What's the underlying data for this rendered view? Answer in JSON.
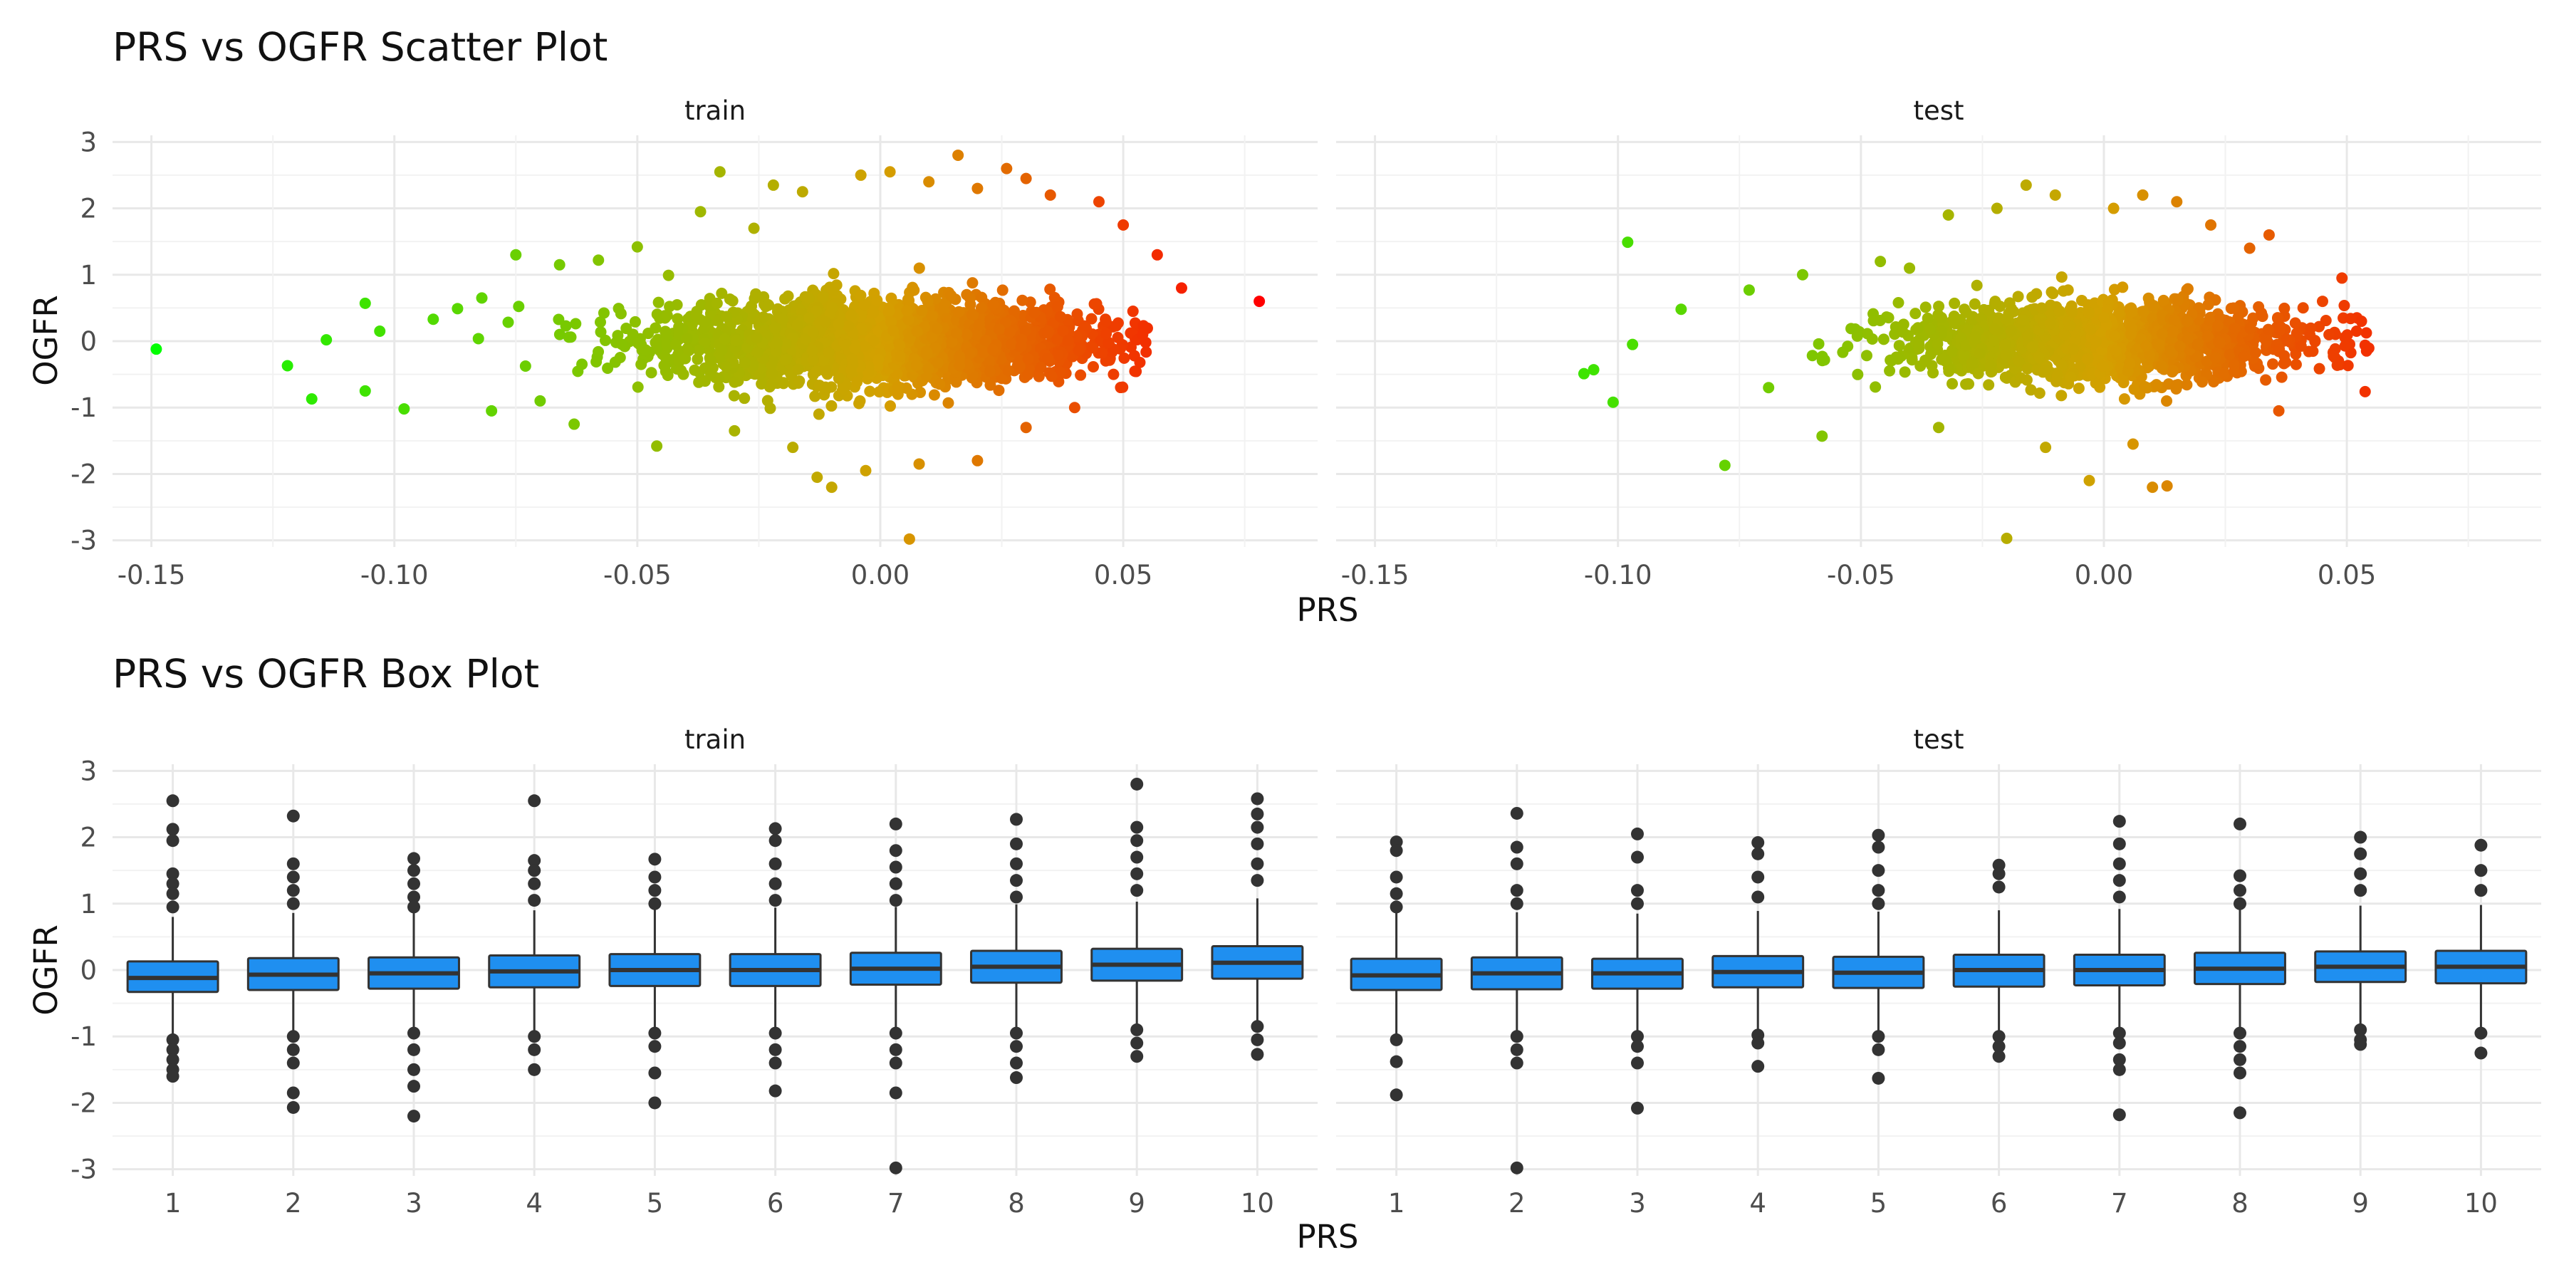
{
  "chart_data": [
    {
      "type": "scatter",
      "title": "PRS vs OGFR Scatter Plot",
      "xlabel": "PRS",
      "ylabel": "OGFR",
      "facets": [
        "train",
        "test"
      ],
      "xlim": [
        -0.158,
        0.09
      ],
      "ylim": [
        -3.1,
        3.1
      ],
      "x_ticks": [
        "-0.15",
        "-0.10",
        "-0.05",
        "0.00",
        "0.05"
      ],
      "y_ticks": [
        "-3",
        "-2",
        "-1",
        "0",
        "1",
        "2",
        "3"
      ],
      "color_scale": {
        "low": "#00ff00",
        "mid": "#d4a000",
        "high": "#ff0000",
        "maps": "PRS"
      },
      "grid": true,
      "legend": "none",
      "cloud": {
        "train": {
          "x_center": 0.0,
          "x_sd": 0.022,
          "y_sd": 0.32
        },
        "test": {
          "x_center": 0.0,
          "x_sd": 0.021,
          "y_sd": 0.3
        }
      },
      "series": [
        {
          "facet": "train",
          "points": [
            [
              -0.149,
              -0.12
            ],
            [
              -0.122,
              -0.37
            ],
            [
              -0.117,
              -0.87
            ],
            [
              -0.114,
              0.02
            ],
            [
              -0.106,
              0.57
            ],
            [
              -0.106,
              -0.75
            ],
            [
              -0.103,
              0.15
            ],
            [
              -0.098,
              -1.02
            ],
            [
              -0.092,
              0.33
            ],
            [
              -0.087,
              0.49
            ],
            [
              -0.082,
              0.65
            ],
            [
              -0.08,
              -1.05
            ],
            [
              -0.075,
              1.3
            ],
            [
              -0.066,
              1.15
            ],
            [
              -0.063,
              -1.25
            ],
            [
              -0.058,
              1.22
            ],
            [
              -0.05,
              1.42
            ],
            [
              -0.046,
              -1.58
            ],
            [
              -0.037,
              1.95
            ],
            [
              -0.033,
              2.55
            ],
            [
              -0.03,
              -1.35
            ],
            [
              -0.026,
              1.7
            ],
            [
              -0.022,
              2.35
            ],
            [
              -0.018,
              -1.6
            ],
            [
              -0.016,
              2.25
            ],
            [
              -0.013,
              -2.05
            ],
            [
              -0.01,
              -2.2
            ],
            [
              -0.004,
              2.5
            ],
            [
              -0.003,
              -1.95
            ],
            [
              0.002,
              2.55
            ],
            [
              0.006,
              -2.98
            ],
            [
              0.008,
              -1.85
            ],
            [
              0.01,
              2.4
            ],
            [
              0.016,
              2.8
            ],
            [
              0.02,
              2.3
            ],
            [
              0.026,
              2.6
            ],
            [
              0.03,
              2.45
            ],
            [
              0.035,
              2.2
            ],
            [
              0.045,
              2.1
            ],
            [
              0.05,
              1.75
            ],
            [
              0.054,
              0.1
            ],
            [
              0.057,
              1.3
            ],
            [
              0.062,
              0.8
            ],
            [
              0.078,
              0.6
            ],
            [
              0.04,
              -1.0
            ],
            [
              0.048,
              -0.5
            ],
            [
              0.052,
              0.45
            ],
            [
              -0.07,
              -0.9
            ],
            [
              0.02,
              -1.8
            ],
            [
              0.03,
              -1.3
            ]
          ]
        },
        {
          "facet": "test",
          "points": [
            [
              -0.107,
              -0.49
            ],
            [
              -0.105,
              -0.43
            ],
            [
              -0.101,
              -0.92
            ],
            [
              -0.098,
              1.49
            ],
            [
              -0.097,
              -0.05
            ],
            [
              -0.087,
              0.48
            ],
            [
              -0.078,
              -1.87
            ],
            [
              -0.073,
              0.77
            ],
            [
              -0.069,
              -0.7
            ],
            [
              -0.062,
              1.0
            ],
            [
              -0.058,
              -1.43
            ],
            [
              -0.046,
              1.2
            ],
            [
              -0.04,
              1.1
            ],
            [
              -0.034,
              -1.3
            ],
            [
              -0.032,
              1.9
            ],
            [
              -0.022,
              2.0
            ],
            [
              -0.02,
              -2.97
            ],
            [
              -0.016,
              2.35
            ],
            [
              -0.012,
              -1.6
            ],
            [
              -0.01,
              2.2
            ],
            [
              -0.003,
              -2.1
            ],
            [
              0.002,
              2.0
            ],
            [
              0.006,
              -1.55
            ],
            [
              0.008,
              2.2
            ],
            [
              0.01,
              -2.2
            ],
            [
              0.013,
              -2.18
            ],
            [
              0.015,
              2.1
            ],
            [
              0.022,
              1.75
            ],
            [
              0.03,
              1.4
            ],
            [
              0.034,
              1.6
            ],
            [
              0.036,
              -1.05
            ],
            [
              0.045,
              0.6
            ],
            [
              0.049,
              0.95
            ],
            [
              0.052,
              0.15
            ],
            [
              0.053,
              0.3
            ]
          ]
        }
      ]
    },
    {
      "type": "box",
      "title": "PRS vs OGFR Box Plot",
      "xlabel": "PRS",
      "ylabel": "OGFR",
      "facets": [
        "train",
        "test"
      ],
      "categories": [
        "1",
        "2",
        "3",
        "4",
        "5",
        "6",
        "7",
        "8",
        "9",
        "10"
      ],
      "ylim": [
        -3.1,
        3.1
      ],
      "y_ticks": [
        "-3",
        "-2",
        "-1",
        "0",
        "1",
        "2",
        "3"
      ],
      "box_fill": "#1f8ff0",
      "box_stroke": "#333333",
      "grid": true,
      "legend": "none",
      "series": [
        {
          "facet": "train",
          "boxes": [
            {
              "q1": -0.33,
              "median": -0.12,
              "q3": 0.13,
              "lower": -1.0,
              "upper": 0.8,
              "outliers": [
                2.55,
                2.12,
                1.95,
                1.45,
                1.3,
                1.15,
                0.95,
                -1.05,
                -1.2,
                -1.35,
                -1.5,
                -1.6
              ]
            },
            {
              "q1": -0.3,
              "median": -0.07,
              "q3": 0.18,
              "lower": -0.98,
              "upper": 0.86,
              "outliers": [
                2.32,
                1.6,
                1.4,
                1.2,
                1.0,
                -1.0,
                -1.2,
                -1.4,
                -1.85,
                -2.07
              ]
            },
            {
              "q1": -0.28,
              "median": -0.05,
              "q3": 0.19,
              "lower": -0.95,
              "upper": 0.88,
              "outliers": [
                1.68,
                1.5,
                1.3,
                1.1,
                0.95,
                -0.95,
                -1.2,
                -1.5,
                -1.75,
                -2.2
              ]
            },
            {
              "q1": -0.26,
              "median": -0.02,
              "q3": 0.22,
              "lower": -0.93,
              "upper": 0.9,
              "outliers": [
                2.55,
                1.65,
                1.5,
                1.3,
                1.05,
                -1.0,
                -1.2,
                -1.5
              ]
            },
            {
              "q1": -0.24,
              "median": 0.0,
              "q3": 0.24,
              "lower": -0.9,
              "upper": 0.92,
              "outliers": [
                1.67,
                1.4,
                1.2,
                1.0,
                -0.95,
                -1.15,
                -1.55,
                -2.0
              ]
            },
            {
              "q1": -0.24,
              "median": 0.0,
              "q3": 0.24,
              "lower": -0.92,
              "upper": 0.94,
              "outliers": [
                2.13,
                1.95,
                1.6,
                1.3,
                1.05,
                -0.95,
                -1.2,
                -1.4,
                -1.82
              ]
            },
            {
              "q1": -0.22,
              "median": 0.02,
              "q3": 0.26,
              "lower": -0.9,
              "upper": 0.95,
              "outliers": [
                2.2,
                1.8,
                1.55,
                1.3,
                1.05,
                -0.95,
                -1.2,
                -1.4,
                -1.85,
                -2.98
              ]
            },
            {
              "q1": -0.19,
              "median": 0.05,
              "q3": 0.29,
              "lower": -0.88,
              "upper": 0.99,
              "outliers": [
                2.27,
                1.9,
                1.6,
                1.35,
                1.1,
                -0.95,
                -1.15,
                -1.4,
                -1.62
              ]
            },
            {
              "q1": -0.16,
              "median": 0.08,
              "q3": 0.32,
              "lower": -0.85,
              "upper": 1.03,
              "outliers": [
                2.8,
                2.15,
                1.95,
                1.7,
                1.45,
                1.2,
                -0.9,
                -1.1,
                -1.3
              ]
            },
            {
              "q1": -0.13,
              "median": 0.11,
              "q3": 0.36,
              "lower": -0.82,
              "upper": 1.08,
              "outliers": [
                2.58,
                2.35,
                2.15,
                1.9,
                1.6,
                1.35,
                -0.85,
                -1.05,
                -1.27
              ]
            }
          ]
        },
        {
          "facet": "test",
          "boxes": [
            {
              "q1": -0.3,
              "median": -0.08,
              "q3": 0.17,
              "lower": -0.98,
              "upper": 0.86,
              "outliers": [
                1.93,
                1.8,
                1.4,
                1.15,
                0.95,
                -1.05,
                -1.38,
                -1.88
              ]
            },
            {
              "q1": -0.29,
              "median": -0.05,
              "q3": 0.19,
              "lower": -0.97,
              "upper": 0.87,
              "outliers": [
                2.36,
                1.85,
                1.6,
                1.2,
                1.0,
                -1.0,
                -1.2,
                -1.4,
                -2.98
              ]
            },
            {
              "q1": -0.28,
              "median": -0.05,
              "q3": 0.17,
              "lower": -0.95,
              "upper": 0.85,
              "outliers": [
                2.05,
                1.7,
                1.2,
                1.0,
                -1.0,
                -1.15,
                -1.4,
                -2.08
              ]
            },
            {
              "q1": -0.26,
              "median": -0.03,
              "q3": 0.21,
              "lower": -0.93,
              "upper": 0.89,
              "outliers": [
                1.92,
                1.75,
                1.4,
                1.1,
                -0.98,
                -1.1,
                -1.45
              ]
            },
            {
              "q1": -0.27,
              "median": -0.04,
              "q3": 0.2,
              "lower": -0.94,
              "upper": 0.88,
              "outliers": [
                2.03,
                1.85,
                1.5,
                1.2,
                1.0,
                -1.0,
                -1.2,
                -1.63
              ]
            },
            {
              "q1": -0.25,
              "median": 0.0,
              "q3": 0.23,
              "lower": -0.92,
              "upper": 0.9,
              "outliers": [
                1.58,
                1.45,
                1.25,
                -1.0,
                -1.15,
                -1.3
              ]
            },
            {
              "q1": -0.23,
              "median": 0.0,
              "q3": 0.23,
              "lower": -0.91,
              "upper": 0.92,
              "outliers": [
                2.24,
                1.9,
                1.6,
                1.35,
                1.1,
                -0.95,
                -1.1,
                -1.35,
                -1.5,
                -2.18
              ]
            },
            {
              "q1": -0.21,
              "median": 0.02,
              "q3": 0.26,
              "lower": -0.89,
              "upper": 0.95,
              "outliers": [
                2.2,
                1.42,
                1.2,
                1.0,
                -0.95,
                -1.15,
                -1.35,
                -1.55,
                -2.15
              ]
            },
            {
              "q1": -0.18,
              "median": 0.05,
              "q3": 0.28,
              "lower": -0.86,
              "upper": 0.97,
              "outliers": [
                2.0,
                1.75,
                1.45,
                1.2,
                -0.9,
                -1.05,
                -1.12
              ]
            },
            {
              "q1": -0.2,
              "median": 0.05,
              "q3": 0.29,
              "lower": -0.87,
              "upper": 0.98,
              "outliers": [
                1.88,
                1.5,
                1.2,
                -0.95,
                -1.25
              ]
            }
          ]
        }
      ]
    }
  ]
}
